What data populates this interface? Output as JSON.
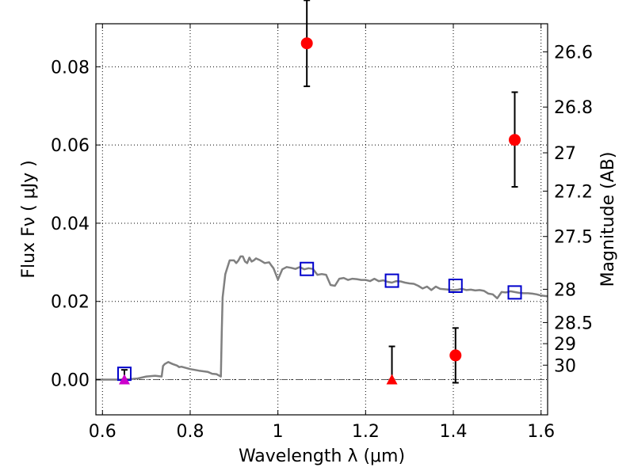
{
  "chart_data": {
    "type": "scatter",
    "xlabel": "Wavelength  λ (μm)",
    "ylabel": "Flux  Fν  ( μJy )",
    "y2label": "Magnitude (AB)",
    "xlim": [
      0.585,
      1.615
    ],
    "ylim": [
      -0.009,
      0.091
    ],
    "grid": true,
    "x_ticks": [
      0.6,
      0.8,
      1.0,
      1.2,
      1.4,
      1.6
    ],
    "x_tick_labels": [
      "0.6",
      "0.8",
      "1",
      "1.2",
      "1.4",
      "1.6"
    ],
    "y_ticks": [
      0.0,
      0.02,
      0.04,
      0.06,
      0.08
    ],
    "y_tick_labels": [
      "0.00",
      "0.02",
      "0.04",
      "0.06",
      "0.08"
    ],
    "mag_ticks": [
      {
        "label": "26.6",
        "flux": 0.0838
      },
      {
        "label": "26.8",
        "flux": 0.0697
      },
      {
        "label": "27",
        "flux": 0.058
      },
      {
        "label": "27.2",
        "flux": 0.0482
      },
      {
        "label": "27.5",
        "flux": 0.0366
      },
      {
        "label": "28",
        "flux": 0.0231
      },
      {
        "label": "28.5",
        "flux": 0.0146
      },
      {
        "label": "29",
        "flux": 0.0092
      },
      {
        "label": "30",
        "flux": 0.0037
      }
    ],
    "series": [
      {
        "kind": "sed_model_line",
        "color": "#808080",
        "x": [
          0.585,
          0.6,
          0.65,
          0.68,
          0.7,
          0.72,
          0.735,
          0.738,
          0.742,
          0.75,
          0.76,
          0.77,
          0.775,
          0.78,
          0.79,
          0.8,
          0.82,
          0.84,
          0.85,
          0.86,
          0.87,
          0.872,
          0.874,
          0.88,
          0.89,
          0.9,
          0.905,
          0.91,
          0.915,
          0.92,
          0.925,
          0.93,
          0.935,
          0.94,
          0.945,
          0.95,
          0.96,
          0.97,
          0.98,
          0.985,
          0.99,
          1.0,
          1.01,
          1.02,
          1.03,
          1.04,
          1.05,
          1.06,
          1.07,
          1.08,
          1.09,
          1.1,
          1.11,
          1.12,
          1.13,
          1.14,
          1.15,
          1.16,
          1.17,
          1.18,
          1.19,
          1.2,
          1.21,
          1.22,
          1.23,
          1.24,
          1.25,
          1.26,
          1.27,
          1.28,
          1.29,
          1.3,
          1.31,
          1.32,
          1.33,
          1.34,
          1.35,
          1.36,
          1.37,
          1.38,
          1.39,
          1.4,
          1.41,
          1.42,
          1.43,
          1.44,
          1.45,
          1.46,
          1.47,
          1.48,
          1.49,
          1.5,
          1.51,
          1.52,
          1.53,
          1.54,
          1.55,
          1.56,
          1.57,
          1.58,
          1.59,
          1.6,
          1.615
        ],
        "y": [
          0.0,
          0.0,
          0.0,
          0.0003,
          0.0008,
          0.001,
          0.0008,
          0.0035,
          0.004,
          0.0045,
          0.004,
          0.0036,
          0.0032,
          0.0033,
          0.003,
          0.0027,
          0.0023,
          0.002,
          0.0015,
          0.0014,
          0.0008,
          0.012,
          0.021,
          0.027,
          0.0305,
          0.0305,
          0.0298,
          0.0305,
          0.0315,
          0.0315,
          0.0302,
          0.0298,
          0.0312,
          0.0302,
          0.0305,
          0.031,
          0.0305,
          0.0298,
          0.03,
          0.0292,
          0.0285,
          0.0256,
          0.0282,
          0.0288,
          0.0286,
          0.0283,
          0.0288,
          0.0282,
          0.0285,
          0.0283,
          0.0268,
          0.027,
          0.0268,
          0.0242,
          0.024,
          0.0258,
          0.026,
          0.0255,
          0.0258,
          0.0257,
          0.0255,
          0.0255,
          0.0252,
          0.0258,
          0.0252,
          0.0254,
          0.025,
          0.0248,
          0.0252,
          0.0251,
          0.0248,
          0.0246,
          0.0245,
          0.024,
          0.0233,
          0.0238,
          0.0229,
          0.0238,
          0.0232,
          0.0231,
          0.023,
          0.0229,
          0.023,
          0.0232,
          0.0229,
          0.023,
          0.0228,
          0.0229,
          0.0227,
          0.022,
          0.0218,
          0.0208,
          0.0224,
          0.0223,
          0.0226,
          0.0224,
          0.0222,
          0.0221,
          0.0221,
          0.022,
          0.0218,
          0.0215,
          0.0213
        ]
      },
      {
        "kind": "model_photometry",
        "marker": "open-square",
        "color": "#0000cc",
        "x": [
          0.65,
          1.066,
          1.26,
          1.405,
          1.54
        ],
        "y": [
          0.0015,
          0.0283,
          0.0253,
          0.024,
          0.0223
        ]
      },
      {
        "kind": "detections",
        "marker": "filled-circle",
        "color": "#ff0000",
        "x": [
          1.066,
          1.54,
          1.405
        ],
        "y": [
          0.086,
          0.0613,
          0.0062
        ],
        "err_low": [
          0.075,
          0.0493,
          -0.0008
        ],
        "err_high": [
          0.097,
          0.0735,
          0.0132
        ]
      },
      {
        "kind": "non_detection_F606W",
        "marker": "filled-triangle",
        "color": "#cc00cc",
        "x": [
          0.65
        ],
        "y": [
          0.0
        ],
        "err_low": [
          0.0
        ],
        "err_high": [
          0.0025
        ]
      },
      {
        "kind": "non_detection_F125W",
        "marker": "filled-triangle",
        "color": "#ff0000",
        "x": [
          1.26
        ],
        "y": [
          0.0
        ],
        "err_low": [
          0.0
        ],
        "err_high": [
          0.0085
        ]
      }
    ],
    "hlines": [
      {
        "y": 0.0,
        "style": "dash-dot",
        "color": "#555555"
      }
    ]
  }
}
